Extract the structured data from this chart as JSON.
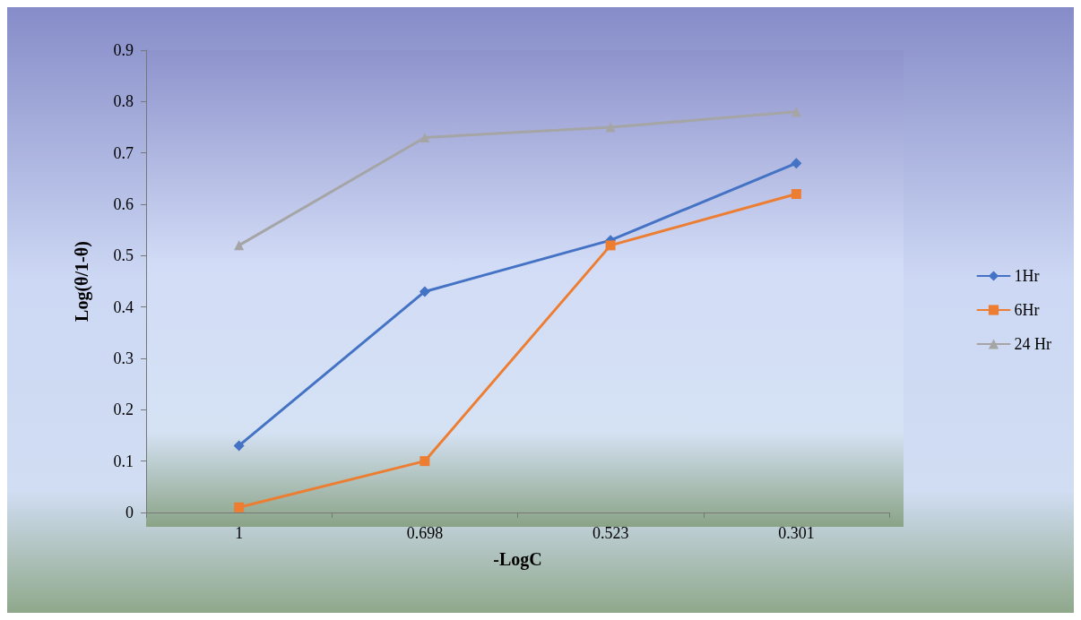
{
  "chart_data": {
    "type": "line",
    "xlabel": "-LogC",
    "ylabel": "Log(θ/1-θ)",
    "categories": [
      "1",
      "0.698",
      "0.523",
      "0.301"
    ],
    "series": [
      {
        "name": "1Hr",
        "color": "#4472c4",
        "marker": "diamond",
        "values": [
          0.13,
          0.43,
          0.53,
          0.68
        ]
      },
      {
        "name": "6Hr",
        "color": "#ed7d31",
        "marker": "square",
        "values": [
          0.01,
          0.1,
          0.52,
          0.62
        ]
      },
      {
        "name": "24 Hr",
        "color": "#a5a5a5",
        "marker": "triangle",
        "values": [
          0.52,
          0.73,
          0.75,
          0.78
        ]
      }
    ],
    "ylim": [
      0,
      0.9
    ],
    "yticks": [
      0,
      0.1,
      0.2,
      0.3,
      0.4,
      0.5,
      0.6,
      0.7,
      0.8,
      0.9
    ],
    "grid": false,
    "legend": "right",
    "line_style": "solid"
  }
}
